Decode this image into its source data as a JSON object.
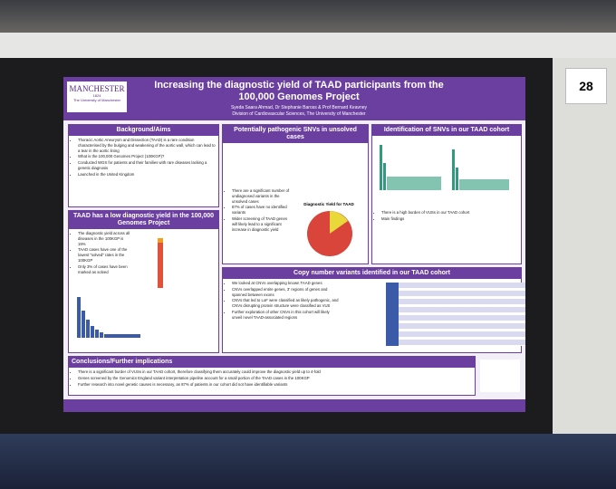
{
  "board_number": "28",
  "poster": {
    "logo": {
      "name": "MANCHESTER",
      "year": "1824",
      "subtitle": "The University of Manchester"
    },
    "title": "Increasing the diagnostic yield of TAAD participants from the 100,000 Genomes Project",
    "authors": "Syeda Saara Ahmad, Dr Stephanie Baross & Prof Bernard Keavney",
    "affiliation": "Division of Cardiovascular Sciences, The University of Manchester",
    "background": {
      "heading": "Background/Aims",
      "items": [
        "Thoracic Aortic Aneurysm and Dissection (TAAD) is a rare condition characterised by the bulging and weakening of the aortic wall, which can lead to a tear in the aortic lining",
        "What is the 100,000 Genomes Project (100KGP)?",
        "Conducted WGS for patients and their families with rare diseases lacking a genetic diagnosis",
        "Launched in the United Kingdom"
      ]
    },
    "low_yield": {
      "heading": "TAAD has a low diagnostic yield in the 100,000 Genomes Project",
      "items": [
        "The diagnostic yield across all diseases in the 100KGP is 19%",
        "TAAD cases have one of the lowest \"solved\" rates in the 100KGP",
        "Only 3% of cases have been marked as solved"
      ]
    },
    "snvs": {
      "heading": "Potentially pathogenic SNVs in unsolved cases",
      "chart_title": "Diagnostic Yield for TAAD",
      "items": [
        "There are a significant number of undiagnosed variants in the unsolved cases",
        "87% of cases have no identified variants",
        "Wider screening of TAAD genes will likely lead to a significant increase in diagnostic yield"
      ]
    },
    "identification": {
      "heading": "Identification of SNVs in our TAAD cohort",
      "items": [
        "There is a high burden of VUSs in our TAAD cohort",
        "Main findings"
      ]
    },
    "cnv": {
      "heading": "Copy number variants identified in our TAAD cohort",
      "items": [
        "We looked at CNVs overlapping known TAAD genes",
        "CNVs overlapped entire genes, 3' regions of genes and spanned between exons",
        "CNVs that led to LoF were classified as likely pathogenic, and CNVs disrupting protein structure were classified as VUS",
        "Further exploration of other CNVs in this cohort will likely unveil novel TAAD-associated regions"
      ]
    },
    "conclusions": {
      "heading": "Conclusions/Further implications",
      "items": [
        "There is a significant burder of VUSs in our TAAD cohort, therefore classifying them accurately could improve the diagnostic yield up to 4-fold",
        "Genes screened by the Genomics England variant interpretation pipeline account for a small portion of the TAAD cases in the 100KGP",
        "Further research into novel genetic causes is necessary, as 87% of patients in our cohort did not have identifiable variants"
      ]
    }
  }
}
